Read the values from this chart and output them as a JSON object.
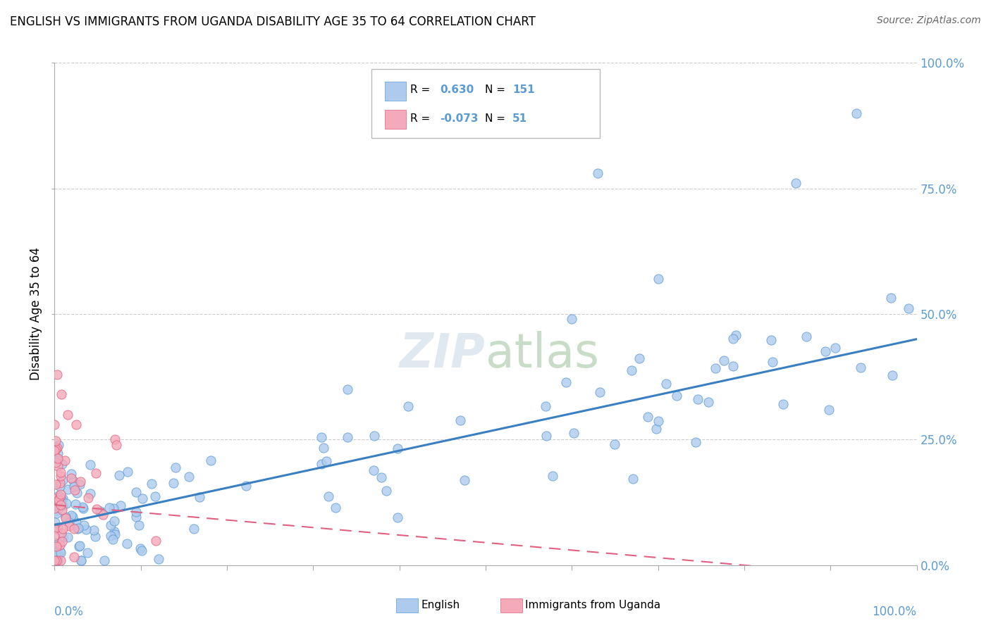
{
  "title": "ENGLISH VS IMMIGRANTS FROM UGANDA DISABILITY AGE 35 TO 64 CORRELATION CHART",
  "source": "Source: ZipAtlas.com",
  "ylabel": "Disability Age 35 to 64",
  "legend_labels": [
    "English",
    "Immigrants from Uganda"
  ],
  "r_english": 0.63,
  "n_english": 151,
  "r_uganda": -0.073,
  "n_uganda": 51,
  "blue_color": "#aecbee",
  "pink_color": "#f5aaba",
  "blue_edge_color": "#5b9bd5",
  "pink_edge_color": "#e06080",
  "blue_line_color": "#3a7fc1",
  "pink_line_color": "#e06080",
  "ytick_color": "#5b9bd5",
  "xtick_color": "#5b9bd5",
  "grid_color": "#cccccc",
  "watermark_color": "#e0e8f0"
}
